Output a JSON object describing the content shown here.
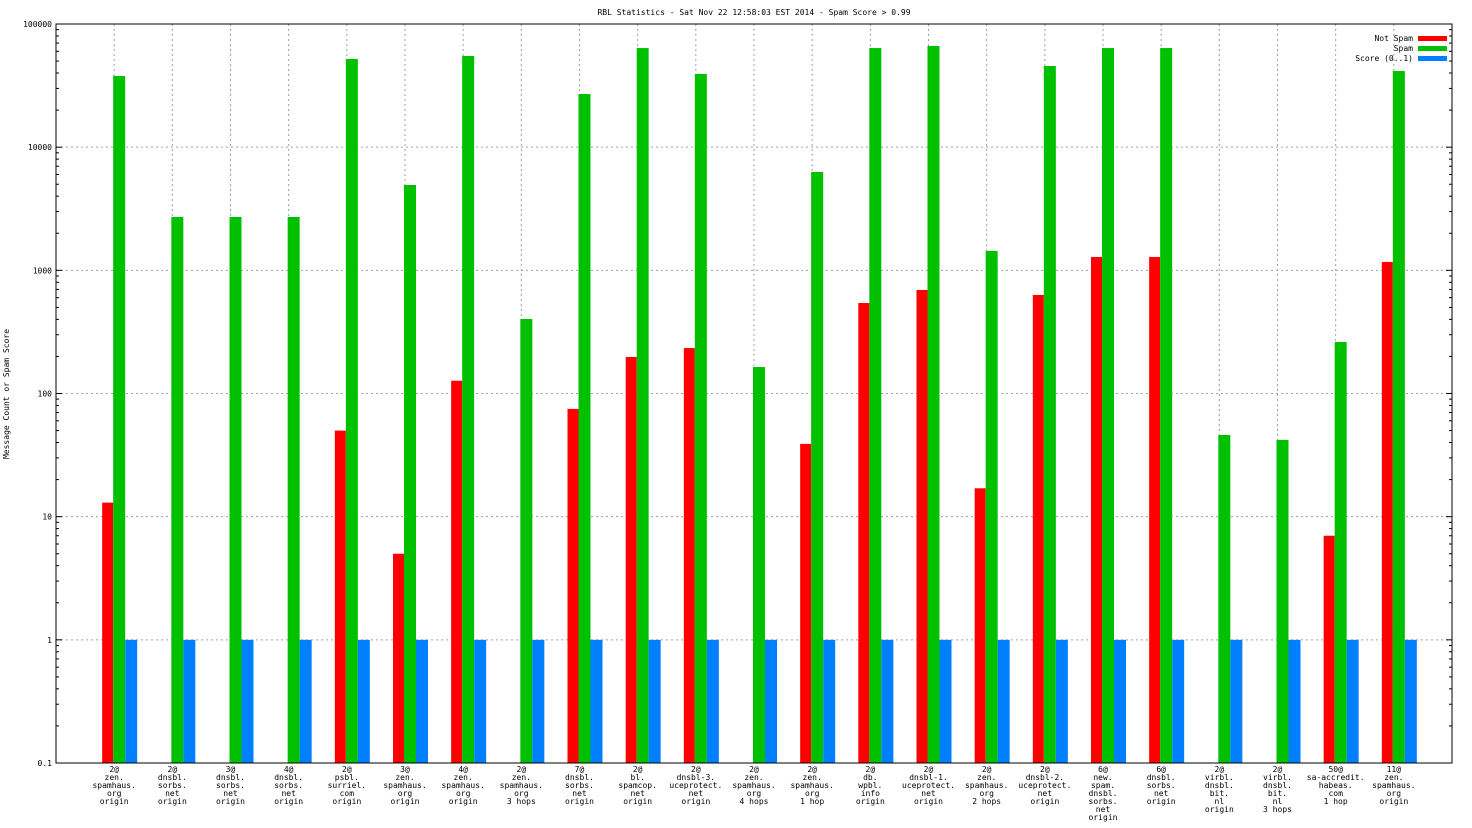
{
  "chart_data": {
    "type": "bar",
    "title": "RBL Statistics - Sat Nov 22 12:58:03 EST 2014 - Spam Score > 0.99",
    "xlabel": "",
    "ylabel": "Message Count or Spam Score",
    "yscale": "log",
    "ylim": [
      0.1,
      100000
    ],
    "yticks": [
      "100000",
      "10000",
      "1000",
      "100",
      "10",
      "1",
      "0.1"
    ],
    "grid": true,
    "legend_position": "top-right",
    "categories": [
      [
        "2@",
        "zen.",
        "spamhaus.",
        "org",
        "origin"
      ],
      [
        "2@",
        "dnsbl.",
        "sorbs.",
        "net",
        "origin"
      ],
      [
        "3@",
        "dnsbl.",
        "sorbs.",
        "net",
        "origin"
      ],
      [
        "4@",
        "dnsbl.",
        "sorbs.",
        "net",
        "origin"
      ],
      [
        "2@",
        "psbl.",
        "surriel.",
        "com",
        "origin"
      ],
      [
        "3@",
        "zen.",
        "spamhaus.",
        "org",
        "origin"
      ],
      [
        "4@",
        "zen.",
        "spamhaus.",
        "org",
        "origin"
      ],
      [
        "2@",
        "zen.",
        "spamhaus.",
        "org",
        "3 hops"
      ],
      [
        "7@",
        "dnsbl.",
        "sorbs.",
        "net",
        "origin"
      ],
      [
        "2@",
        "bl.",
        "spamcop.",
        "net",
        "origin"
      ],
      [
        "2@",
        "dnsbl-3.",
        "uceprotect.",
        "net",
        "origin"
      ],
      [
        "2@",
        "zen.",
        "spamhaus.",
        "org",
        "4 hops"
      ],
      [
        "2@",
        "zen.",
        "spamhaus.",
        "org",
        "1 hop"
      ],
      [
        "2@",
        "db.",
        "wpbl.",
        "info",
        "origin"
      ],
      [
        "2@",
        "dnsbl-1.",
        "uceprotect.",
        "net",
        "origin"
      ],
      [
        "2@",
        "zen.",
        "spamhaus.",
        "org",
        "2 hops"
      ],
      [
        "2@",
        "dnsbl-2.",
        "uceprotect.",
        "net",
        "origin"
      ],
      [
        "6@",
        "new.",
        "spam.",
        "dnsbl.",
        "sorbs.",
        "net",
        "origin"
      ],
      [
        "6@",
        "dnsbl.",
        "sorbs.",
        "net",
        "origin"
      ],
      [
        "2@",
        "virbl.",
        "dnsbl.",
        "bit.",
        "nl",
        "origin"
      ],
      [
        "2@",
        "virbl.",
        "dnsbl.",
        "bit.",
        "nl",
        "3 hops"
      ],
      [
        "50@",
        "sa-accredit.",
        "habeas.",
        "com",
        "1 hop"
      ],
      [
        "11@",
        "zen.",
        "spamhaus.",
        "org",
        "origin"
      ]
    ],
    "series": [
      {
        "name": "Not Spam",
        "color": "#ff0000",
        "values": [
          13,
          null,
          null,
          null,
          50,
          5,
          127,
          null,
          75,
          198,
          234,
          null,
          39,
          543,
          693,
          17,
          631,
          1284,
          1284,
          null,
          null,
          7,
          1170
        ]
      },
      {
        "name": "Spam",
        "color": "#00c000",
        "values": [
          37800,
          2710,
          2710,
          2710,
          52000,
          4930,
          55000,
          403,
          27000,
          63800,
          39300,
          164,
          6290,
          63800,
          66300,
          1437,
          45600,
          63800,
          63800,
          46,
          42,
          262,
          41500
        ]
      },
      {
        "name": "Score (0..1)",
        "color": "#0080ff",
        "values": [
          1,
          1,
          1,
          1,
          1,
          1,
          1,
          1,
          1,
          1,
          1,
          1,
          1,
          1,
          1,
          1,
          1,
          1,
          1,
          1,
          1,
          1,
          1
        ]
      }
    ]
  }
}
